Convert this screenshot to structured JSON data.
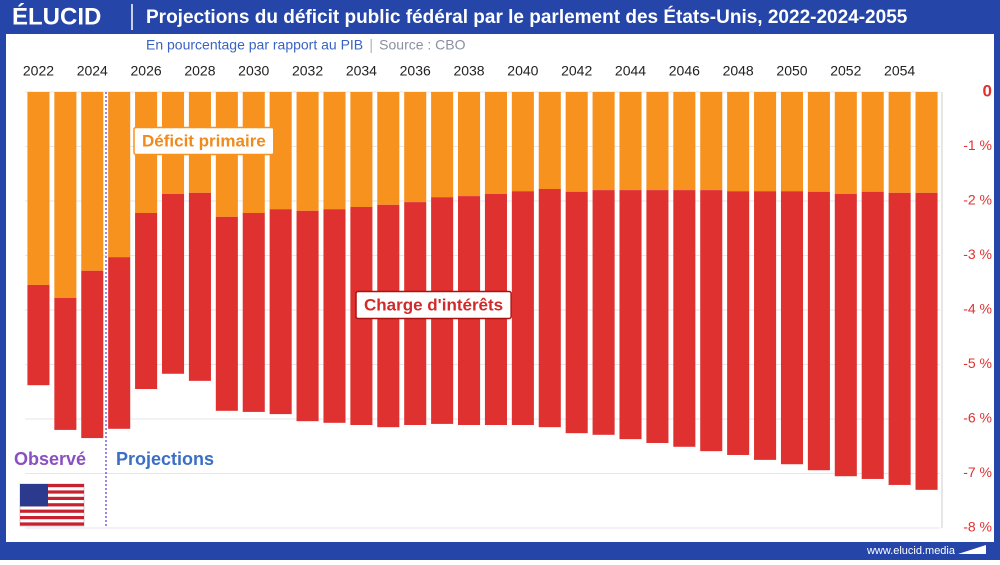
{
  "brand": "ÉLUCID",
  "footer": "www.elucid.media",
  "chart_data": {
    "type": "stacked-bar",
    "title": "Projections du déficit public fédéral par le parlement des États-Unis, 2022-2024-2055",
    "subtitle": "En pourcentage par rapport au PIB",
    "source": "Source : CBO",
    "annotations": {
      "observed": "Observé",
      "projections": "Projections"
    },
    "categories": [
      "2022",
      null,
      "2024",
      null,
      "2026",
      null,
      "2028",
      null,
      "2030",
      null,
      "2032",
      null,
      "2034",
      null,
      "2036",
      null,
      "2038",
      null,
      "2040",
      null,
      "2042",
      null,
      "2044",
      null,
      "2046",
      null,
      "2048",
      null,
      "2050",
      null,
      "2052",
      null,
      "2054",
      null
    ],
    "series": [
      {
        "name": "Déficit primaire",
        "color": "#f7921e",
        "values": [
          -3.54,
          -3.78,
          -3.28,
          -3.03,
          -2.22,
          -1.87,
          -1.85,
          -2.29,
          -2.22,
          -2.15,
          -2.18,
          -2.15,
          -2.11,
          -2.07,
          -2.02,
          -1.93,
          -1.91,
          -1.87,
          -1.82,
          -1.78,
          -1.83,
          -1.8,
          -1.8,
          -1.8,
          -1.8,
          -1.8,
          -1.82,
          -1.82,
          -1.82,
          -1.83,
          -1.87,
          -1.83,
          -1.85,
          -1.85
        ]
      },
      {
        "name": "Charge d'intérêts",
        "color": "#e03131",
        "values": [
          -1.84,
          -2.42,
          -3.07,
          -3.15,
          -3.23,
          -3.3,
          -3.45,
          -3.56,
          -3.65,
          -3.76,
          -3.86,
          -3.92,
          -4.0,
          -4.08,
          -4.09,
          -4.16,
          -4.2,
          -4.24,
          -4.29,
          -4.37,
          -4.43,
          -4.49,
          -4.57,
          -4.64,
          -4.71,
          -4.79,
          -4.84,
          -4.93,
          -5.01,
          -5.11,
          -5.18,
          -5.27,
          -5.36,
          -5.45
        ]
      }
    ],
    "ylim": [
      -8,
      0
    ],
    "yticks": [
      {
        "value": -8,
        "label": "-8 %"
      },
      {
        "value": -7,
        "label": "-7 %"
      },
      {
        "value": -6,
        "label": "-6 %"
      },
      {
        "value": -5,
        "label": "-5 %"
      },
      {
        "value": -4,
        "label": "-4 %"
      },
      {
        "value": -3,
        "label": "-3 %"
      },
      {
        "value": -2,
        "label": "-2 %"
      },
      {
        "value": -1,
        "label": "-1 %"
      },
      0
    ],
    "grid": true
  }
}
